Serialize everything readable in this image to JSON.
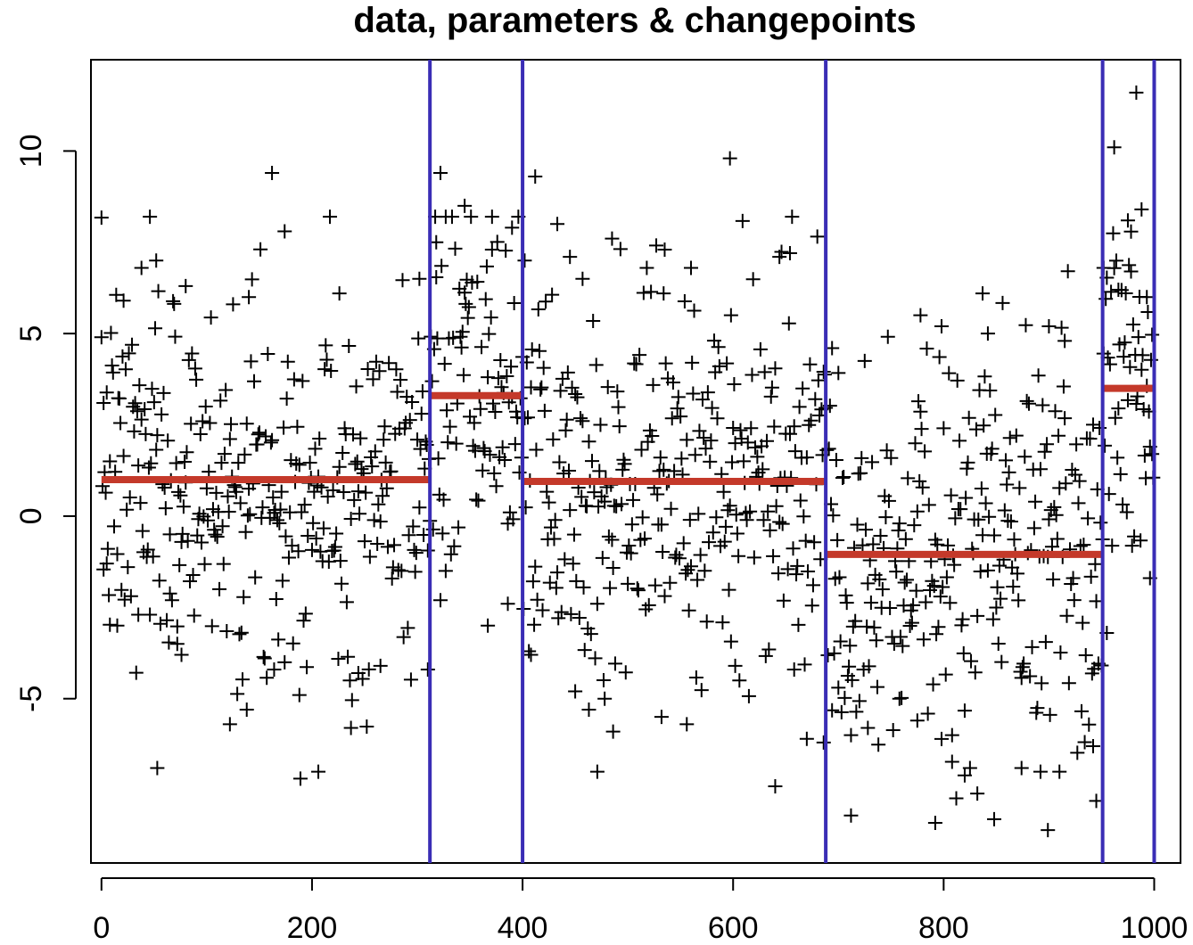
{
  "chart_data": {
    "type": "scatter",
    "title": "data, parameters & changepoints",
    "xlabel": "",
    "ylabel": "",
    "xlim": [
      -10,
      1025
    ],
    "ylim": [
      -9.5,
      12.5
    ],
    "x_ticks": [
      0,
      200,
      400,
      600,
      800,
      1000
    ],
    "x_tick_labels": [
      "0",
      "200",
      "400",
      "600",
      "800",
      "1000"
    ],
    "y_ticks": [
      -5,
      0,
      5,
      10
    ],
    "y_tick_labels": [
      "-5",
      "0",
      "5",
      "10"
    ],
    "grid": false,
    "legend": "none",
    "point_marker": "+",
    "point_color": "#000000",
    "changepoint_color": "#3a2db5",
    "segment_mean_color": "#c4392a",
    "changepoints": [
      312,
      400,
      688,
      951,
      1000
    ],
    "segment_means": [
      {
        "x_start": 0,
        "x_end": 312,
        "mean": 1.0
      },
      {
        "x_start": 312,
        "x_end": 400,
        "mean": 3.3
      },
      {
        "x_start": 400,
        "x_end": 688,
        "mean": 0.95
      },
      {
        "x_start": 688,
        "x_end": 951,
        "mean": -1.05
      },
      {
        "x_start": 951,
        "x_end": 1000,
        "mean": 3.5
      }
    ],
    "highlighted_points": [
      {
        "x": 0,
        "y": 4.9
      },
      {
        "x": 2,
        "y": 3.1
      },
      {
        "x": 5,
        "y": -1.3
      },
      {
        "x": 8,
        "y": 1.5
      },
      {
        "x": 15,
        "y": -3.0
      },
      {
        "x": 21,
        "y": 5.9
      },
      {
        "x": 35,
        "y": -2.7
      },
      {
        "x": 38,
        "y": 6.8
      },
      {
        "x": 46,
        "y": -2.7
      },
      {
        "x": 52,
        "y": 7.0
      },
      {
        "x": 53,
        "y": -6.9
      },
      {
        "x": 65,
        "y": -0.5
      },
      {
        "x": 72,
        "y": -3.5
      },
      {
        "x": 76,
        "y": -3.8
      },
      {
        "x": 80,
        "y": 6.3
      },
      {
        "x": 122,
        "y": -5.7
      },
      {
        "x": 140,
        "y": 6.0
      },
      {
        "x": 138,
        "y": -5.3
      },
      {
        "x": 162,
        "y": 9.4
      },
      {
        "x": 164,
        "y": -4.2
      },
      {
        "x": 174,
        "y": 7.8
      },
      {
        "x": 188,
        "y": -4.9
      },
      {
        "x": 206,
        "y": -7.0
      },
      {
        "x": 226,
        "y": 6.1
      },
      {
        "x": 237,
        "y": -5.8
      },
      {
        "x": 244,
        "y": -4.3
      },
      {
        "x": 265,
        "y": -4.1
      },
      {
        "x": 302,
        "y": 6.5
      },
      {
        "x": 310,
        "y": -4.2
      },
      {
        "x": 318,
        "y": 7.5
      },
      {
        "x": 322,
        "y": 9.4
      },
      {
        "x": 327,
        "y": -1.5
      },
      {
        "x": 345,
        "y": 8.5
      },
      {
        "x": 367,
        "y": -3.0
      },
      {
        "x": 371,
        "y": 7.3
      },
      {
        "x": 386,
        "y": -2.4
      },
      {
        "x": 390,
        "y": 7.9
      },
      {
        "x": 402,
        "y": 7.0
      },
      {
        "x": 408,
        "y": -3.8
      },
      {
        "x": 412,
        "y": 9.3
      },
      {
        "x": 433,
        "y": 8.0
      },
      {
        "x": 445,
        "y": 7.1
      },
      {
        "x": 450,
        "y": -4.8
      },
      {
        "x": 457,
        "y": 6.5
      },
      {
        "x": 463,
        "y": -5.3
      },
      {
        "x": 471,
        "y": -7.0
      },
      {
        "x": 478,
        "y": -5.0
      },
      {
        "x": 485,
        "y": 7.6
      },
      {
        "x": 486,
        "y": -5.9
      },
      {
        "x": 532,
        "y": -5.5
      },
      {
        "x": 534,
        "y": 6.1
      },
      {
        "x": 535,
        "y": 7.3
      },
      {
        "x": 556,
        "y": -5.7
      },
      {
        "x": 560,
        "y": 6.8
      },
      {
        "x": 597,
        "y": 9.8
      },
      {
        "x": 598,
        "y": 5.5
      },
      {
        "x": 602,
        "y": -4.1
      },
      {
        "x": 640,
        "y": -7.4
      },
      {
        "x": 644,
        "y": 7.1
      },
      {
        "x": 654,
        "y": 7.2
      },
      {
        "x": 658,
        "y": -4.2
      },
      {
        "x": 670,
        "y": -6.1
      },
      {
        "x": 686,
        "y": -6.2
      },
      {
        "x": 694,
        "y": 4.6
      },
      {
        "x": 700,
        "y": -4.7
      },
      {
        "x": 712,
        "y": -6.0
      },
      {
        "x": 728,
        "y": -5.8
      },
      {
        "x": 758,
        "y": -5.0
      },
      {
        "x": 775,
        "y": -5.6
      },
      {
        "x": 778,
        "y": 5.5
      },
      {
        "x": 792,
        "y": -8.4
      },
      {
        "x": 798,
        "y": 5.2
      },
      {
        "x": 808,
        "y": -6.0
      },
      {
        "x": 820,
        "y": -7.1
      },
      {
        "x": 832,
        "y": -7.6
      },
      {
        "x": 837,
        "y": 6.1
      },
      {
        "x": 842,
        "y": 5.0
      },
      {
        "x": 848,
        "y": -8.3
      },
      {
        "x": 874,
        "y": -6.9
      },
      {
        "x": 892,
        "y": -7.0
      },
      {
        "x": 899,
        "y": -8.6
      },
      {
        "x": 900,
        "y": 5.2
      },
      {
        "x": 910,
        "y": -7.0
      },
      {
        "x": 915,
        "y": 4.8
      },
      {
        "x": 942,
        "y": -6.3
      },
      {
        "x": 945,
        "y": -7.8
      },
      {
        "x": 952,
        "y": 6.8
      },
      {
        "x": 955,
        "y": -3.2
      },
      {
        "x": 962,
        "y": 10.1
      },
      {
        "x": 966,
        "y": 6.2
      },
      {
        "x": 975,
        "y": 8.1
      },
      {
        "x": 978,
        "y": 6.7
      },
      {
        "x": 983,
        "y": 11.6
      },
      {
        "x": 988,
        "y": 8.4
      },
      {
        "x": 993,
        "y": 6.0
      },
      {
        "x": 996,
        "y": -1.7
      },
      {
        "x": 998,
        "y": 1.7
      }
    ],
    "generated_noise": {
      "seed": 7,
      "n": 1000,
      "sd": 2.6,
      "means_follow_segments": true
    }
  }
}
